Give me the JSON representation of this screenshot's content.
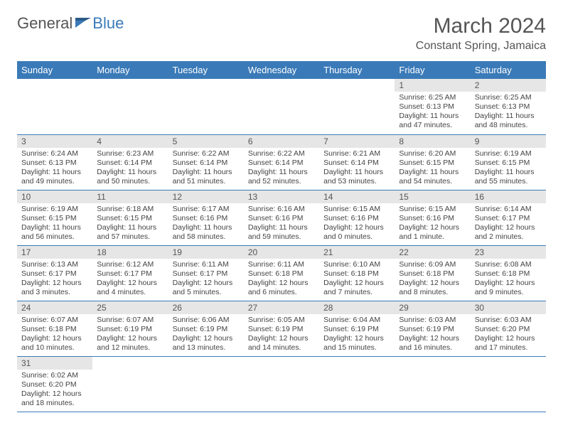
{
  "logo": {
    "text1": "General",
    "text2": "Blue"
  },
  "title": "March 2024",
  "location": "Constant Spring, Jamaica",
  "colors": {
    "header_bg": "#3a7ab8",
    "daynum_bg": "#e6e6e6",
    "border": "#3a7ab8"
  },
  "weekdays": [
    "Sunday",
    "Monday",
    "Tuesday",
    "Wednesday",
    "Thursday",
    "Friday",
    "Saturday"
  ],
  "weeks": [
    [
      null,
      null,
      null,
      null,
      null,
      {
        "n": "1",
        "sr": "Sunrise: 6:25 AM",
        "ss": "Sunset: 6:13 PM",
        "d1": "Daylight: 11 hours",
        "d2": "and 47 minutes."
      },
      {
        "n": "2",
        "sr": "Sunrise: 6:25 AM",
        "ss": "Sunset: 6:13 PM",
        "d1": "Daylight: 11 hours",
        "d2": "and 48 minutes."
      }
    ],
    [
      {
        "n": "3",
        "sr": "Sunrise: 6:24 AM",
        "ss": "Sunset: 6:13 PM",
        "d1": "Daylight: 11 hours",
        "d2": "and 49 minutes."
      },
      {
        "n": "4",
        "sr": "Sunrise: 6:23 AM",
        "ss": "Sunset: 6:14 PM",
        "d1": "Daylight: 11 hours",
        "d2": "and 50 minutes."
      },
      {
        "n": "5",
        "sr": "Sunrise: 6:22 AM",
        "ss": "Sunset: 6:14 PM",
        "d1": "Daylight: 11 hours",
        "d2": "and 51 minutes."
      },
      {
        "n": "6",
        "sr": "Sunrise: 6:22 AM",
        "ss": "Sunset: 6:14 PM",
        "d1": "Daylight: 11 hours",
        "d2": "and 52 minutes."
      },
      {
        "n": "7",
        "sr": "Sunrise: 6:21 AM",
        "ss": "Sunset: 6:14 PM",
        "d1": "Daylight: 11 hours",
        "d2": "and 53 minutes."
      },
      {
        "n": "8",
        "sr": "Sunrise: 6:20 AM",
        "ss": "Sunset: 6:15 PM",
        "d1": "Daylight: 11 hours",
        "d2": "and 54 minutes."
      },
      {
        "n": "9",
        "sr": "Sunrise: 6:19 AM",
        "ss": "Sunset: 6:15 PM",
        "d1": "Daylight: 11 hours",
        "d2": "and 55 minutes."
      }
    ],
    [
      {
        "n": "10",
        "sr": "Sunrise: 6:19 AM",
        "ss": "Sunset: 6:15 PM",
        "d1": "Daylight: 11 hours",
        "d2": "and 56 minutes."
      },
      {
        "n": "11",
        "sr": "Sunrise: 6:18 AM",
        "ss": "Sunset: 6:15 PM",
        "d1": "Daylight: 11 hours",
        "d2": "and 57 minutes."
      },
      {
        "n": "12",
        "sr": "Sunrise: 6:17 AM",
        "ss": "Sunset: 6:16 PM",
        "d1": "Daylight: 11 hours",
        "d2": "and 58 minutes."
      },
      {
        "n": "13",
        "sr": "Sunrise: 6:16 AM",
        "ss": "Sunset: 6:16 PM",
        "d1": "Daylight: 11 hours",
        "d2": "and 59 minutes."
      },
      {
        "n": "14",
        "sr": "Sunrise: 6:15 AM",
        "ss": "Sunset: 6:16 PM",
        "d1": "Daylight: 12 hours",
        "d2": "and 0 minutes."
      },
      {
        "n": "15",
        "sr": "Sunrise: 6:15 AM",
        "ss": "Sunset: 6:16 PM",
        "d1": "Daylight: 12 hours",
        "d2": "and 1 minute."
      },
      {
        "n": "16",
        "sr": "Sunrise: 6:14 AM",
        "ss": "Sunset: 6:17 PM",
        "d1": "Daylight: 12 hours",
        "d2": "and 2 minutes."
      }
    ],
    [
      {
        "n": "17",
        "sr": "Sunrise: 6:13 AM",
        "ss": "Sunset: 6:17 PM",
        "d1": "Daylight: 12 hours",
        "d2": "and 3 minutes."
      },
      {
        "n": "18",
        "sr": "Sunrise: 6:12 AM",
        "ss": "Sunset: 6:17 PM",
        "d1": "Daylight: 12 hours",
        "d2": "and 4 minutes."
      },
      {
        "n": "19",
        "sr": "Sunrise: 6:11 AM",
        "ss": "Sunset: 6:17 PM",
        "d1": "Daylight: 12 hours",
        "d2": "and 5 minutes."
      },
      {
        "n": "20",
        "sr": "Sunrise: 6:11 AM",
        "ss": "Sunset: 6:18 PM",
        "d1": "Daylight: 12 hours",
        "d2": "and 6 minutes."
      },
      {
        "n": "21",
        "sr": "Sunrise: 6:10 AM",
        "ss": "Sunset: 6:18 PM",
        "d1": "Daylight: 12 hours",
        "d2": "and 7 minutes."
      },
      {
        "n": "22",
        "sr": "Sunrise: 6:09 AM",
        "ss": "Sunset: 6:18 PM",
        "d1": "Daylight: 12 hours",
        "d2": "and 8 minutes."
      },
      {
        "n": "23",
        "sr": "Sunrise: 6:08 AM",
        "ss": "Sunset: 6:18 PM",
        "d1": "Daylight: 12 hours",
        "d2": "and 9 minutes."
      }
    ],
    [
      {
        "n": "24",
        "sr": "Sunrise: 6:07 AM",
        "ss": "Sunset: 6:18 PM",
        "d1": "Daylight: 12 hours",
        "d2": "and 10 minutes."
      },
      {
        "n": "25",
        "sr": "Sunrise: 6:07 AM",
        "ss": "Sunset: 6:19 PM",
        "d1": "Daylight: 12 hours",
        "d2": "and 12 minutes."
      },
      {
        "n": "26",
        "sr": "Sunrise: 6:06 AM",
        "ss": "Sunset: 6:19 PM",
        "d1": "Daylight: 12 hours",
        "d2": "and 13 minutes."
      },
      {
        "n": "27",
        "sr": "Sunrise: 6:05 AM",
        "ss": "Sunset: 6:19 PM",
        "d1": "Daylight: 12 hours",
        "d2": "and 14 minutes."
      },
      {
        "n": "28",
        "sr": "Sunrise: 6:04 AM",
        "ss": "Sunset: 6:19 PM",
        "d1": "Daylight: 12 hours",
        "d2": "and 15 minutes."
      },
      {
        "n": "29",
        "sr": "Sunrise: 6:03 AM",
        "ss": "Sunset: 6:19 PM",
        "d1": "Daylight: 12 hours",
        "d2": "and 16 minutes."
      },
      {
        "n": "30",
        "sr": "Sunrise: 6:03 AM",
        "ss": "Sunset: 6:20 PM",
        "d1": "Daylight: 12 hours",
        "d2": "and 17 minutes."
      }
    ],
    [
      {
        "n": "31",
        "sr": "Sunrise: 6:02 AM",
        "ss": "Sunset: 6:20 PM",
        "d1": "Daylight: 12 hours",
        "d2": "and 18 minutes."
      },
      null,
      null,
      null,
      null,
      null,
      null
    ]
  ]
}
